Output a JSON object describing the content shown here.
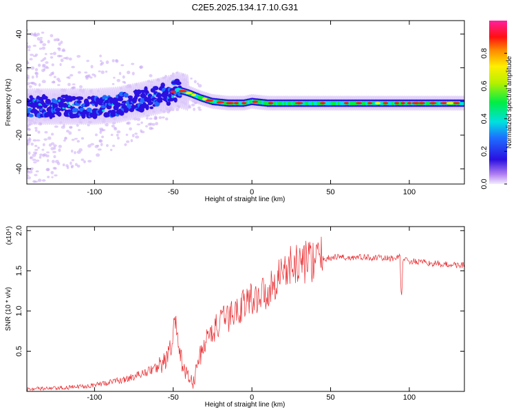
{
  "title": "C2E5.2025.134.17.10.G31",
  "chart_data": [
    {
      "type": "heatmap",
      "xlabel": "Height of straight line (km)",
      "ylabel": "Frequency (Hz)",
      "xlim": [
        -143,
        135
      ],
      "ylim": [
        -49,
        48
      ],
      "xticks": [
        -100,
        -50,
        0,
        50,
        100
      ],
      "yticks": [
        -40,
        -20,
        0,
        20,
        40
      ],
      "colorbar": {
        "label": "Normalized spectral amplitude",
        "ticks": [
          "0.0",
          "0.2",
          "0.4",
          "0.6",
          "0.8"
        ],
        "range": [
          0,
          1
        ]
      },
      "ridge": {
        "x": [
          -143,
          -120,
          -100,
          -85,
          -70,
          -60,
          -52,
          -47,
          -40,
          -32,
          -25,
          -15,
          -5,
          0,
          10,
          30,
          60,
          90,
          110,
          135
        ],
        "y": [
          -3,
          -3,
          -3,
          -2,
          1,
          3,
          5,
          7,
          5,
          2,
          0,
          -1,
          -1,
          0,
          -1,
          -1,
          -1,
          -1,
          -1,
          -1
        ]
      }
    },
    {
      "type": "line",
      "xlabel": "Height of straight line (km)",
      "ylabel": "SNR (10 * v/v)",
      "multiplier": "(x10⁴)",
      "xlim": [
        -143,
        135
      ],
      "ylim": [
        0,
        2.05
      ],
      "xticks": [
        -100,
        -50,
        0,
        50,
        100
      ],
      "yticks": [
        0.5,
        1.0,
        1.5,
        2.0
      ],
      "ytick_labels": [
        "0.5",
        "1.0",
        "1.5",
        "2.0"
      ],
      "color": "#e8282c",
      "series": [
        {
          "x": [
            -143,
            -120,
            -100,
            -80,
            -70,
            -60,
            -55,
            -51,
            -49,
            -46,
            -40,
            -37,
            -35,
            -30,
            -25,
            -20,
            -15,
            -10,
            -5,
            0,
            5,
            10,
            13,
            15,
            20,
            25,
            30,
            40,
            50,
            56,
            60,
            70,
            80,
            90,
            94,
            95,
            96,
            100,
            110,
            120,
            135
          ],
          "y": [
            0.03,
            0.04,
            0.08,
            0.15,
            0.22,
            0.3,
            0.38,
            0.55,
            0.9,
            0.45,
            0.15,
            0.1,
            0.32,
            0.6,
            0.75,
            0.85,
            0.92,
            1.0,
            1.1,
            1.15,
            1.2,
            1.25,
            1.3,
            1.4,
            1.5,
            1.55,
            1.6,
            1.64,
            1.66,
            1.68,
            1.66,
            1.67,
            1.66,
            1.65,
            1.7,
            1.1,
            1.65,
            1.62,
            1.6,
            1.58,
            1.57
          ]
        }
      ]
    }
  ]
}
